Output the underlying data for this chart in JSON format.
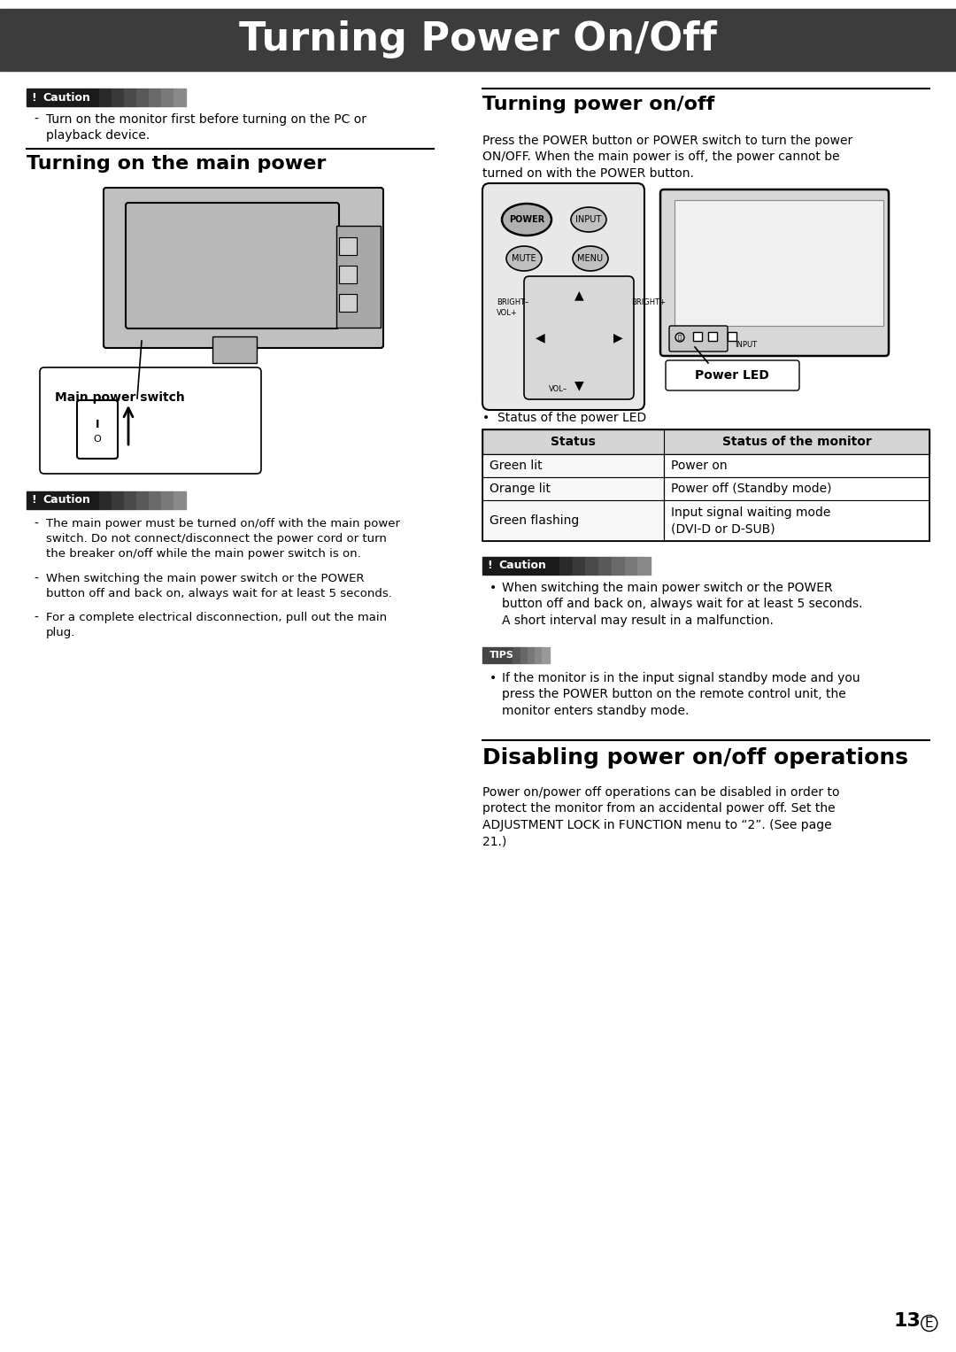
{
  "title": "Turning Power On/Off",
  "title_bg": "#3c3c3c",
  "title_color": "#ffffff",
  "page_bg": "#ffffff",
  "section1_title": "Turning on the main power",
  "section2_title": "Turning power on/off",
  "section3_title": "Disabling power on/off operations",
  "caution1_bullet": "Turn on the monitor first before turning on the PC or\nplayback device.",
  "caution2_bullets": [
    "The main power must be turned on/off with the main power\nswitch. Do not connect/disconnect the power cord or turn\nthe breaker on/off while the main power switch is on.",
    "When switching the main power switch or the POWER\nbutton off and back on, always wait for at least 5 seconds.",
    "For a complete electrical disconnection, pull out the main\nplug."
  ],
  "power_onoff_text": "Press the POWER button or POWER switch to turn the power\nON/OFF. When the main power is off, the power cannot be\nturned on with the POWER button.",
  "table_headers": [
    "Status",
    "Status of the monitor"
  ],
  "table_rows": [
    [
      "Green lit",
      "Power on"
    ],
    [
      "Orange lit",
      "Power off (Standby mode)"
    ],
    [
      "Green flashing",
      "Input signal waiting mode\n(DVI-D or D-SUB)"
    ]
  ],
  "status_led_text": "Status of the power LED",
  "power_led_label": "Power LED",
  "caution3_bullet": "When switching the main power switch or the POWER\nbutton off and back on, always wait for at least 5 seconds.\nA short interval may result in a malfunction.",
  "tips_bullet": "If the monitor is in the input signal standby mode and you\npress the POWER button on the remote control unit, the\nmonitor enters standby mode.",
  "disable_text": "Power on/power off operations can be disabled in order to\nprotect the monitor from an accidental power off. Set the\nADJUSTMENT LOCK in FUNCTION menu to “2”. (See page\n21.)",
  "page_number": "13",
  "page_suffix": "E",
  "main_power_switch_label": "Main power switch"
}
